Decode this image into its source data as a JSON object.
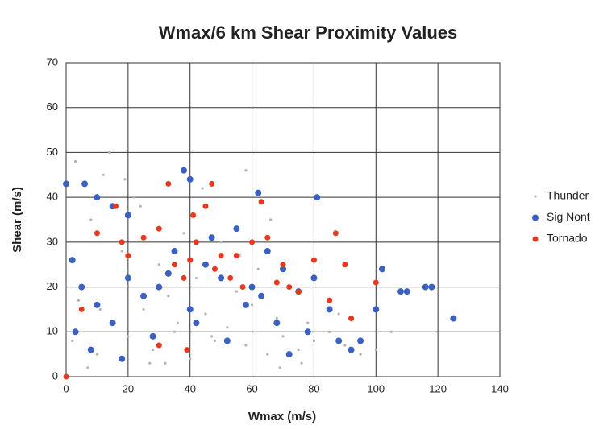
{
  "chart_data": {
    "type": "scatter",
    "title": "Wmax/6 km Shear Proximity Values",
    "x_label": "Wmax (m/s)",
    "y_label": "Shear (m/s)",
    "xlim": [
      0,
      140
    ],
    "xticks": [
      0,
      20,
      40,
      60,
      80,
      100,
      120,
      140
    ],
    "ylim": [
      0,
      70
    ],
    "yticks": [
      0,
      10,
      20,
      30,
      40,
      50,
      60,
      70
    ],
    "grid": true,
    "legend": "right",
    "series": [
      {
        "name": "Thunder",
        "color": "#b4b4b4",
        "size": 1.6,
        "x": [
          2,
          5,
          8,
          10,
          12,
          15,
          18,
          20,
          22,
          25,
          28,
          30,
          33,
          35,
          38,
          40,
          42,
          45,
          48,
          50,
          52,
          55,
          58,
          60,
          62,
          65,
          68,
          70,
          72,
          75,
          78,
          80,
          85,
          90,
          95,
          3,
          7,
          14,
          24,
          32,
          44,
          56,
          66,
          76,
          4,
          11,
          19,
          27,
          36,
          47,
          58,
          69,
          88,
          100,
          105
        ],
        "values": [
          8,
          20,
          35,
          5,
          45,
          12,
          28,
          9,
          40,
          15,
          6,
          25,
          18,
          10,
          32,
          4,
          22,
          14,
          8,
          30,
          11,
          19,
          7,
          16,
          24,
          5,
          13,
          9,
          20,
          6,
          12,
          8,
          10,
          7,
          5,
          48,
          2,
          50,
          38,
          3,
          42,
          27,
          35,
          3,
          17,
          15,
          44,
          3,
          12,
          9,
          46,
          2,
          14,
          6,
          10
        ]
      },
      {
        "name": "Sig Nont",
        "color": "#3a60c4",
        "size": 4,
        "x": [
          0,
          6,
          2,
          10,
          15,
          20,
          38,
          40,
          62,
          81,
          125,
          118,
          116,
          110,
          108,
          102,
          100,
          95,
          92,
          85,
          80,
          75,
          70,
          65,
          60,
          55,
          50,
          45,
          40,
          35,
          30,
          25,
          20,
          15,
          10,
          5,
          3,
          8,
          18,
          28,
          42,
          52,
          58,
          68,
          72,
          78,
          88,
          33,
          47,
          63
        ],
        "values": [
          43,
          43,
          26,
          40,
          38,
          36,
          46,
          44,
          41,
          40,
          13,
          20,
          20,
          19,
          19,
          24,
          15,
          8,
          6,
          15,
          22,
          19,
          24,
          28,
          20,
          33,
          22,
          25,
          15,
          28,
          20,
          18,
          22,
          12,
          16,
          20,
          10,
          6,
          4,
          9,
          12,
          8,
          16,
          12,
          5,
          10,
          8,
          23,
          31,
          18
        ]
      },
      {
        "name": "Tornado",
        "color": "#e8381e",
        "size": 3.5,
        "x": [
          0,
          5,
          10,
          16,
          20,
          33,
          47,
          45,
          41,
          40,
          35,
          30,
          42,
          50,
          55,
          60,
          63,
          65,
          70,
          72,
          75,
          80,
          85,
          87,
          90,
          92,
          100,
          39,
          30,
          38,
          53,
          68,
          57,
          48,
          25,
          18
        ],
        "values": [
          0,
          15,
          32,
          38,
          27,
          43,
          43,
          38,
          36,
          26,
          25,
          33,
          30,
          27,
          27,
          30,
          39,
          31,
          25,
          20,
          19,
          26,
          17,
          32,
          25,
          13,
          21,
          6,
          7,
          22,
          22,
          21,
          20,
          24,
          31,
          30
        ]
      }
    ]
  }
}
